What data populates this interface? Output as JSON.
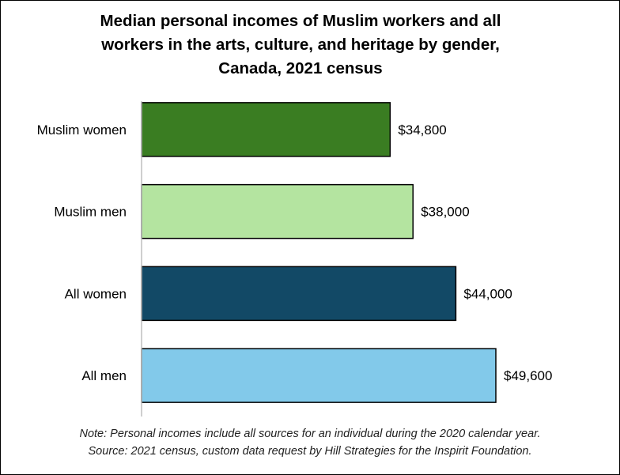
{
  "chart_data": {
    "type": "bar",
    "orientation": "horizontal",
    "title_lines": [
      "Median personal incomes of Muslim workers and all",
      "workers in the arts, culture, and heritage by gender,",
      "Canada, 2021 census"
    ],
    "categories": [
      "Muslim women",
      "Muslim men",
      "All women",
      "All men"
    ],
    "values": [
      34800,
      38000,
      44000,
      49600
    ],
    "data_labels": [
      "$34,800",
      "$38,000",
      "$44,000",
      "$49,600"
    ],
    "colors": [
      "#3a7d22",
      "#b4e4a0",
      "#124966",
      "#82c9ea"
    ],
    "xlim": [
      0,
      55000
    ],
    "grid": false,
    "legend": "none",
    "notes": [
      "Note: Personal incomes include all sources for an individual during the 2020 calendar year.",
      "Source: 2021 census, custom data request by Hill Strategies for the Inspirit Foundation."
    ]
  }
}
